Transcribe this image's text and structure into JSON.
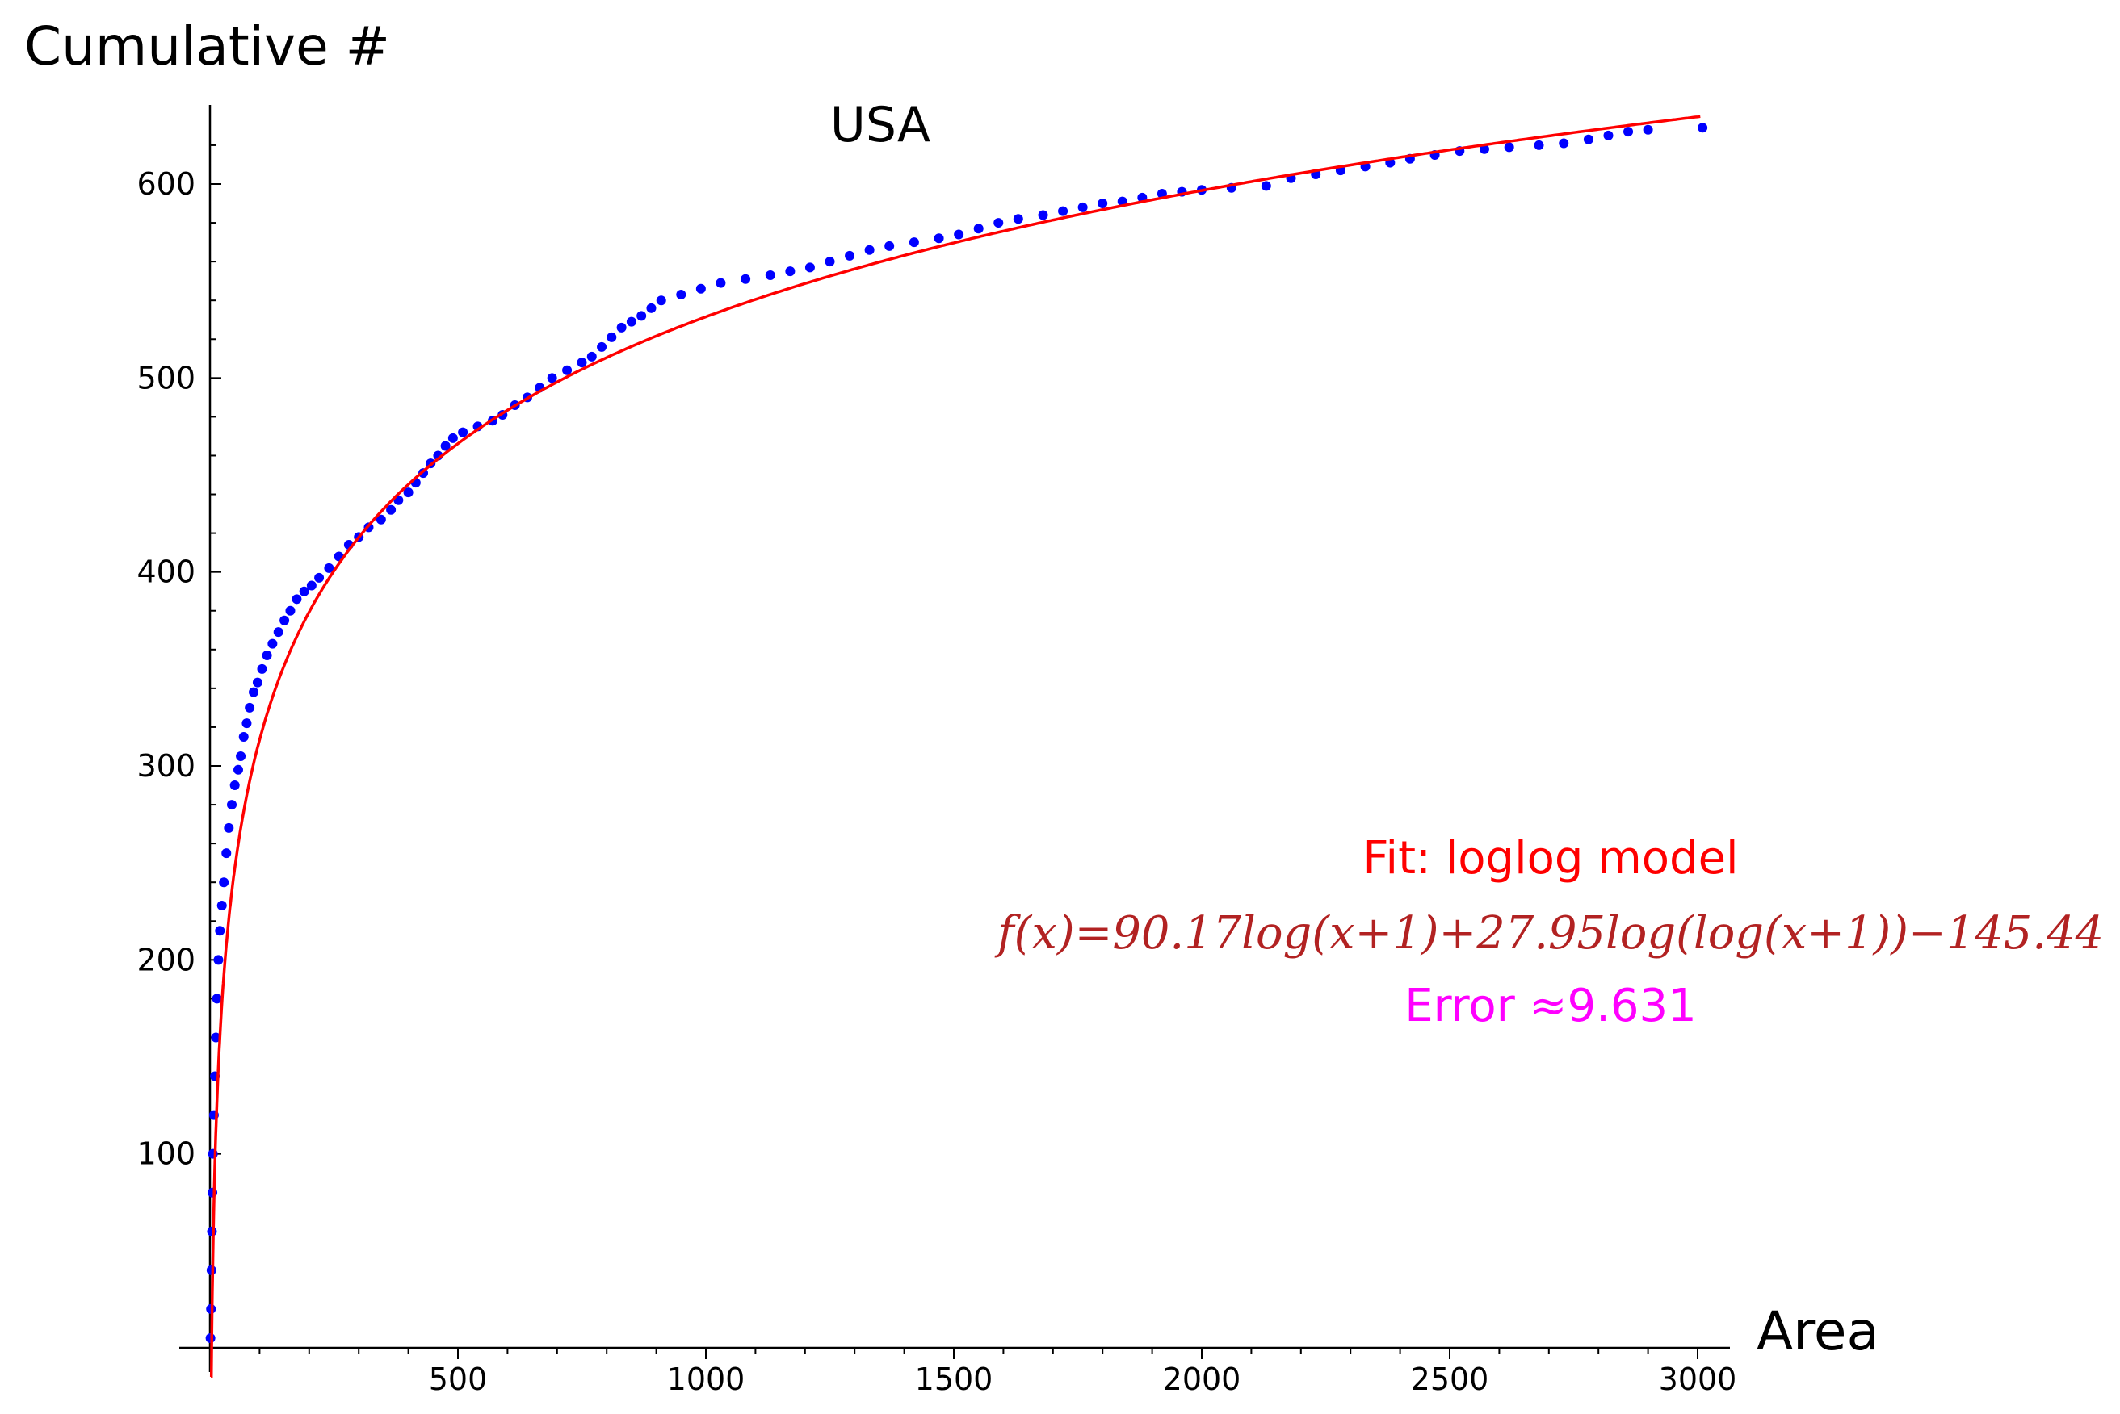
{
  "chart_data": {
    "type": "scatter",
    "title": "USA",
    "xlabel": "Area",
    "ylabel": "Cumulative #",
    "xlim": [
      -60,
      3080
    ],
    "ylim": [
      -15,
      640
    ],
    "x_ticks": [
      500,
      1000,
      1500,
      2000,
      2500,
      3000
    ],
    "y_ticks": [
      100,
      200,
      300,
      400,
      500,
      600
    ],
    "x_ticks_labels": [
      "500",
      "1000",
      "1500",
      "2000",
      "2500",
      "3000"
    ],
    "y_ticks_labels": [
      "100",
      "200",
      "300",
      "400",
      "500",
      "600"
    ],
    "grid": false,
    "series": [
      {
        "kind": "points",
        "color": "#0000ff",
        "points": [
          [
            1,
            5
          ],
          [
            2,
            20
          ],
          [
            3,
            40
          ],
          [
            4,
            60
          ],
          [
            5,
            80
          ],
          [
            6,
            100
          ],
          [
            8,
            120
          ],
          [
            10,
            140
          ],
          [
            12,
            160
          ],
          [
            14,
            180
          ],
          [
            17,
            200
          ],
          [
            20,
            215
          ],
          [
            24,
            228
          ],
          [
            28,
            240
          ],
          [
            33,
            255
          ],
          [
            38,
            268
          ],
          [
            44,
            280
          ],
          [
            50,
            290
          ],
          [
            57,
            298
          ],
          [
            62,
            305
          ],
          [
            68,
            315
          ],
          [
            74,
            322
          ],
          [
            80,
            330
          ],
          [
            88,
            338
          ],
          [
            96,
            343
          ],
          [
            105,
            350
          ],
          [
            115,
            357
          ],
          [
            126,
            363
          ],
          [
            138,
            369
          ],
          [
            150,
            375
          ],
          [
            162,
            380
          ],
          [
            175,
            386
          ],
          [
            190,
            390
          ],
          [
            205,
            393
          ],
          [
            220,
            397
          ],
          [
            240,
            402
          ],
          [
            260,
            408
          ],
          [
            280,
            414
          ],
          [
            300,
            418
          ],
          [
            320,
            423
          ],
          [
            345,
            427
          ],
          [
            365,
            432
          ],
          [
            380,
            437
          ],
          [
            400,
            441
          ],
          [
            415,
            446
          ],
          [
            430,
            451
          ],
          [
            445,
            456
          ],
          [
            460,
            460
          ],
          [
            475,
            465
          ],
          [
            490,
            469
          ],
          [
            510,
            472
          ],
          [
            540,
            475
          ],
          [
            570,
            478
          ],
          [
            590,
            481
          ],
          [
            615,
            486
          ],
          [
            640,
            490
          ],
          [
            665,
            495
          ],
          [
            690,
            500
          ],
          [
            720,
            504
          ],
          [
            750,
            508
          ],
          [
            770,
            511
          ],
          [
            790,
            516
          ],
          [
            810,
            521
          ],
          [
            830,
            526
          ],
          [
            850,
            529
          ],
          [
            870,
            532
          ],
          [
            890,
            536
          ],
          [
            910,
            540
          ],
          [
            950,
            543
          ],
          [
            990,
            546
          ],
          [
            1030,
            549
          ],
          [
            1080,
            551
          ],
          [
            1130,
            553
          ],
          [
            1170,
            555
          ],
          [
            1210,
            557
          ],
          [
            1250,
            560
          ],
          [
            1290,
            563
          ],
          [
            1330,
            566
          ],
          [
            1370,
            568
          ],
          [
            1420,
            570
          ],
          [
            1470,
            572
          ],
          [
            1510,
            574
          ],
          [
            1550,
            577
          ],
          [
            1590,
            580
          ],
          [
            1630,
            582
          ],
          [
            1680,
            584
          ],
          [
            1720,
            586
          ],
          [
            1760,
            588
          ],
          [
            1800,
            590
          ],
          [
            1840,
            591
          ],
          [
            1880,
            593
          ],
          [
            1920,
            595
          ],
          [
            1960,
            596
          ],
          [
            2000,
            597
          ],
          [
            2060,
            598
          ],
          [
            2130,
            599
          ],
          [
            2180,
            603
          ],
          [
            2230,
            605
          ],
          [
            2280,
            607
          ],
          [
            2330,
            609
          ],
          [
            2380,
            611
          ],
          [
            2420,
            613
          ],
          [
            2470,
            615
          ],
          [
            2520,
            617
          ],
          [
            2570,
            618
          ],
          [
            2620,
            619
          ],
          [
            2680,
            620
          ],
          [
            2730,
            621
          ],
          [
            2780,
            623
          ],
          [
            2820,
            625
          ],
          [
            2860,
            627
          ],
          [
            2900,
            628
          ],
          [
            3010,
            629
          ]
        ]
      },
      {
        "kind": "curve",
        "color": "#ff0000",
        "function": "f(x) = 90.17 log(x+1) + 27.95 log(log(x+1)) - 145.44",
        "coefficients": {
          "a": 90.17,
          "b": 27.95,
          "c": -145.44
        },
        "x_range": [
          1,
          3010
        ]
      }
    ],
    "annotations": {
      "fit_label": "Fit: loglog model",
      "formula": "f(x)=90.17log(x+1)+27.95log(log(x+1))−145.44",
      "error": "Error ≈9.631",
      "fit_label_color": "#ff0000",
      "formula_color": "#b22222",
      "error_color": "#ff00ff"
    }
  }
}
